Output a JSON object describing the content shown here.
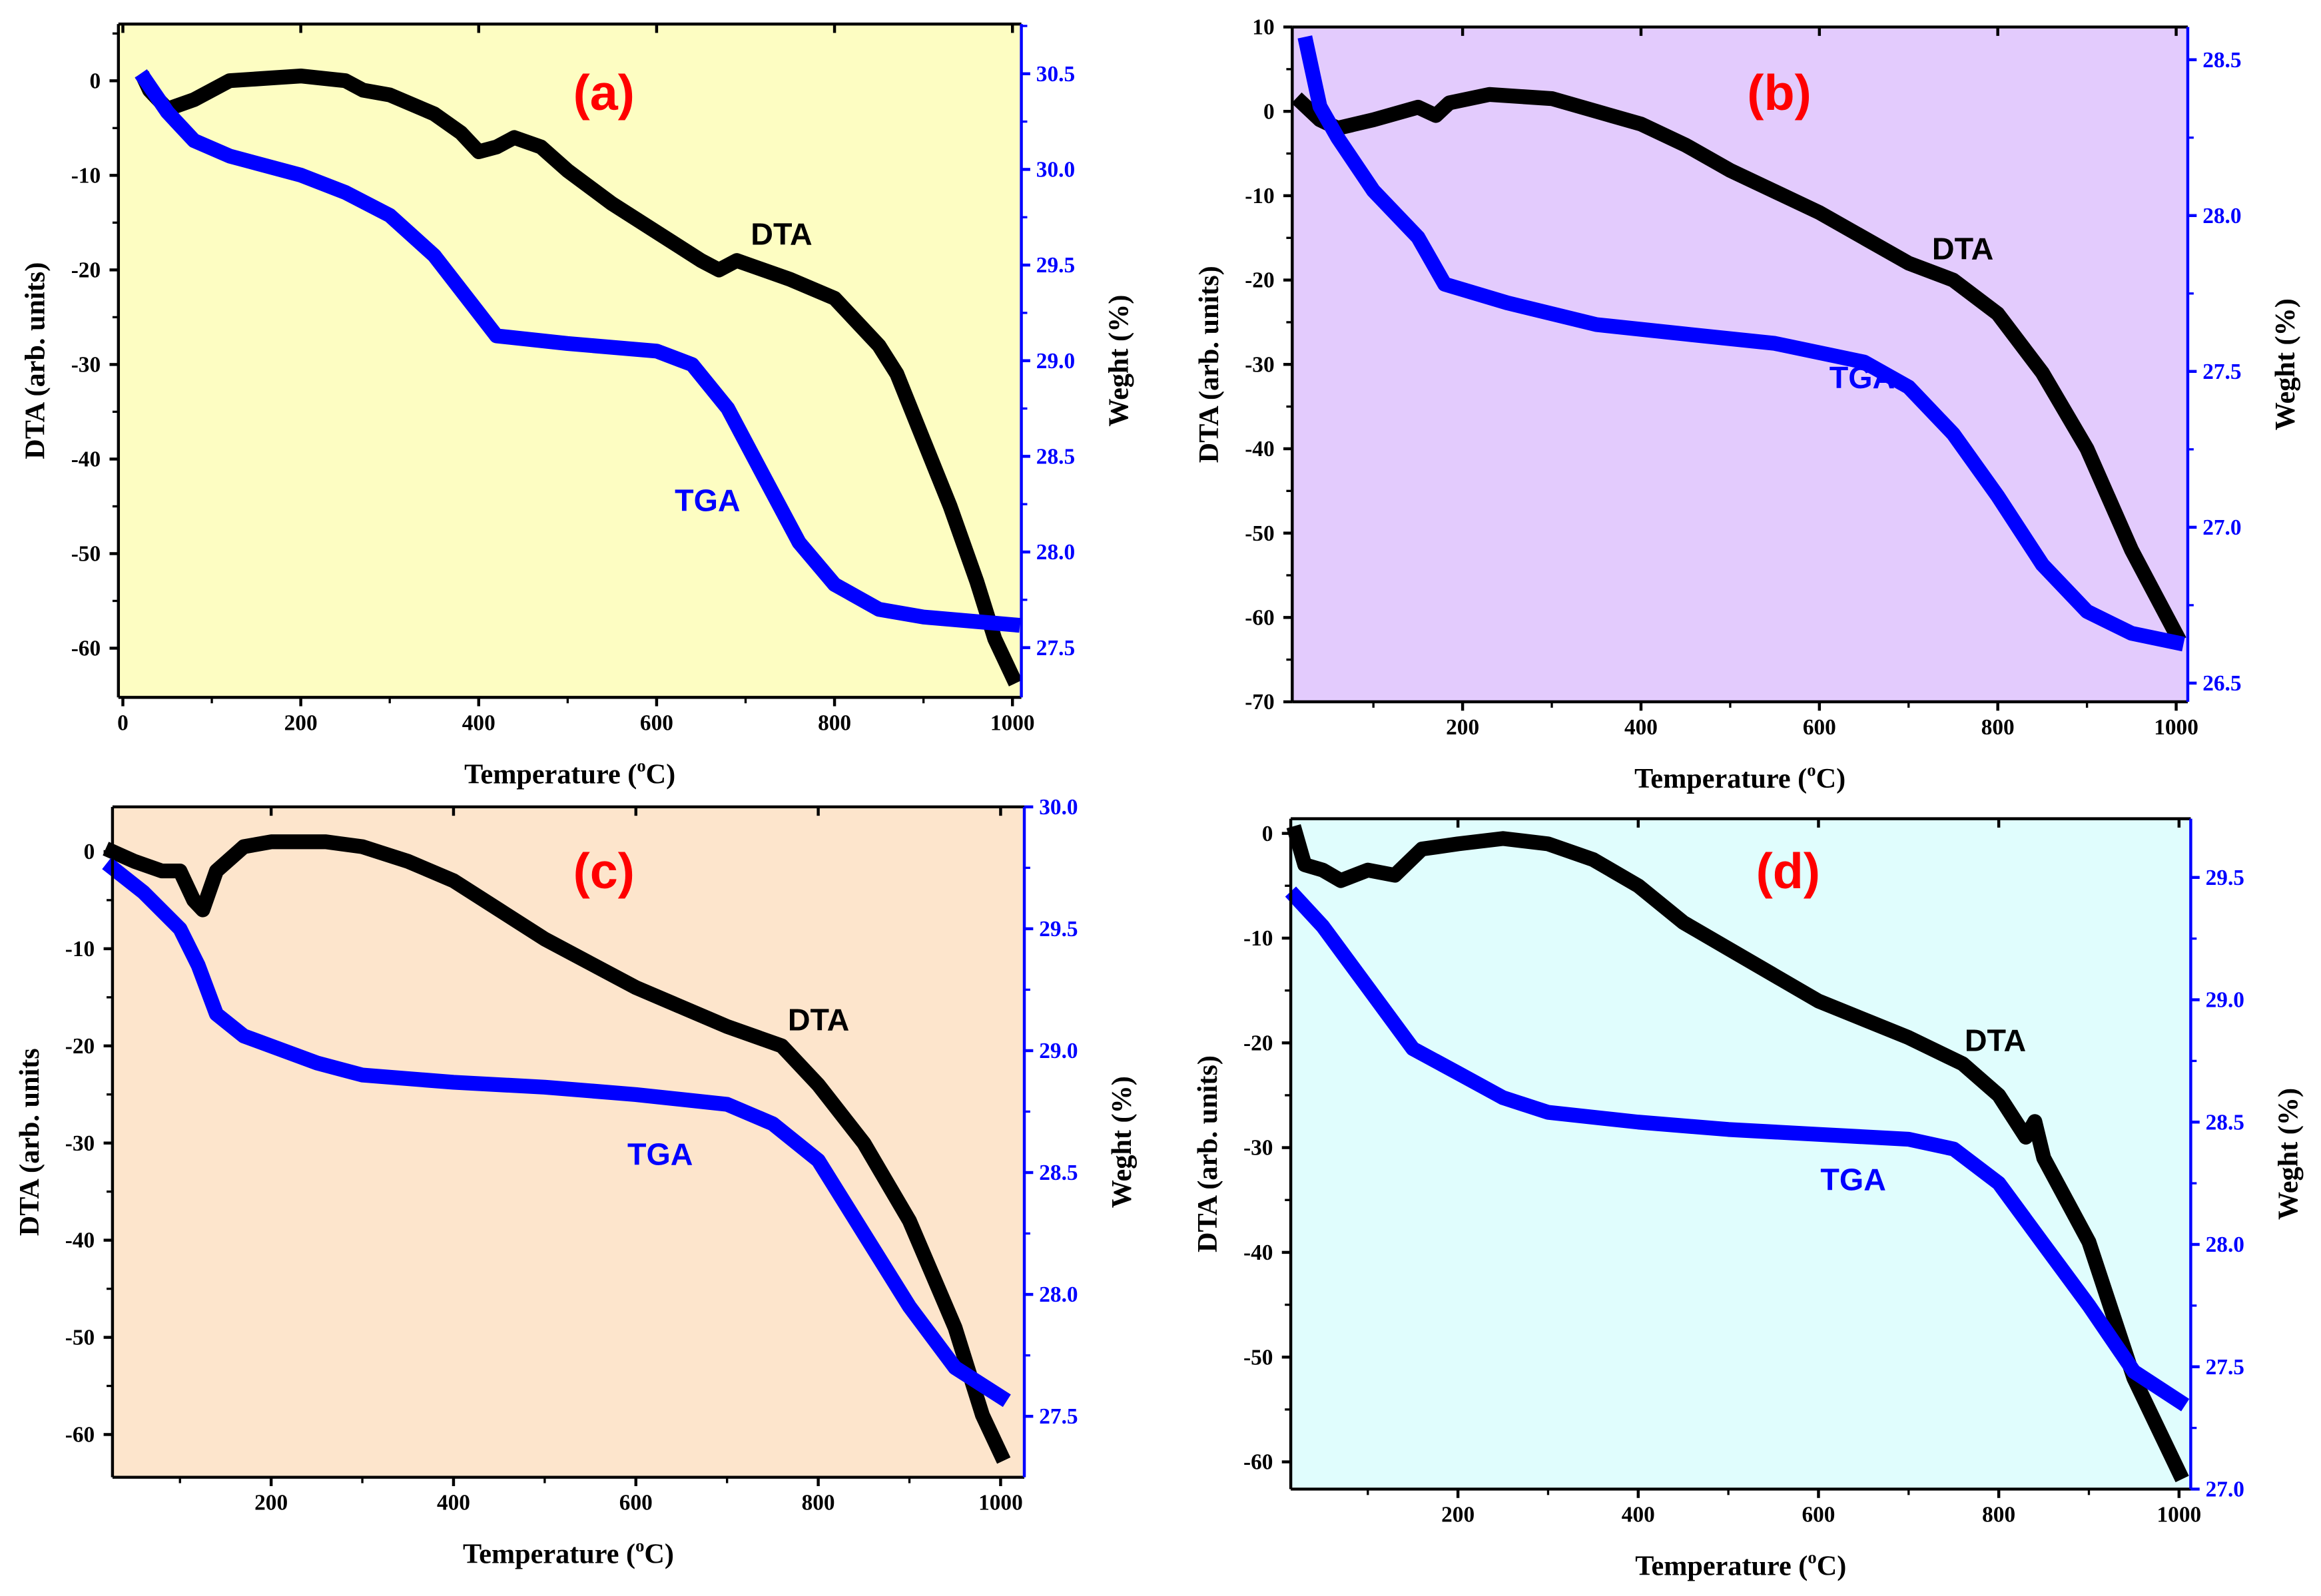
{
  "chart_data": [
    {
      "type": "line",
      "panel_label": "(a)",
      "xlabel": "Temperature (",
      "xlabel_sup": "o",
      "xlabel_end": "C)",
      "ylabel": "DTA (arb. units)",
      "y2label": "Weght (%)",
      "xlim": [
        -5,
        1010
      ],
      "ylim": [
        -65.2,
        6
      ],
      "y2lim": [
        27.24,
        30.76
      ],
      "xticks": [
        0,
        200,
        400,
        600,
        800,
        1000
      ],
      "yticks": [
        -60,
        -50,
        -40,
        -30,
        -20,
        -10,
        0
      ],
      "y2ticks": [
        "27.5",
        "28.0",
        "28.5",
        "29.0",
        "29.5",
        "30.0",
        "30.5"
      ],
      "background": "#fdfdc2",
      "series": [
        {
          "name": "DTA",
          "axis": "left",
          "color": "#000000",
          "x": [
            25,
            30,
            50,
            80,
            120,
            200,
            250,
            270,
            300,
            350,
            380,
            400,
            420,
            440,
            470,
            500,
            550,
            600,
            650,
            670,
            690,
            750,
            800,
            820,
            850,
            870,
            900,
            930,
            960,
            980,
            1000
          ],
          "y": [
            0,
            -1,
            -3,
            -2,
            0,
            0.5,
            0,
            -1,
            -1.5,
            -3.5,
            -5.5,
            -7.5,
            -7,
            -6,
            -7,
            -9.5,
            -13,
            -16,
            -19,
            -20,
            -19,
            -21,
            -23,
            -25,
            -28,
            -31,
            -38,
            -45,
            -53,
            -59,
            -63
          ]
        },
        {
          "name": "TGA",
          "axis": "right",
          "color": "#0000ff",
          "x": [
            25,
            50,
            80,
            120,
            200,
            250,
            300,
            350,
            400,
            420,
            500,
            600,
            640,
            680,
            720,
            760,
            800,
            850,
            900,
            1000
          ],
          "y": [
            30.47,
            30.3,
            30.15,
            30.07,
            29.97,
            29.88,
            29.76,
            29.55,
            29.25,
            29.13,
            29.09,
            29.05,
            28.98,
            28.75,
            28.4,
            28.05,
            27.83,
            27.7,
            27.66,
            27.62
          ]
        }
      ]
    },
    {
      "type": "line",
      "panel_label": "(b)",
      "xlabel": "Temperature (",
      "xlabel_sup": "o",
      "xlabel_end": "C)",
      "ylabel": "DTA (arb. units)",
      "y2label": "Weght (%)",
      "xlim": [
        9,
        1013
      ],
      "ylim": [
        -70,
        10
      ],
      "y2lim": [
        26.44,
        28.605
      ],
      "xticks": [
        200,
        400,
        600,
        800,
        1000
      ],
      "yticks": [
        -70,
        -60,
        -50,
        -40,
        -30,
        -20,
        -10,
        0,
        10
      ],
      "y2ticks": [
        "26.5",
        "27.0",
        "27.5",
        "28.0",
        "28.5"
      ],
      "background": "#e3cbfd",
      "series": [
        {
          "name": "DTA",
          "axis": "left",
          "color": "#000000",
          "x": [
            20,
            40,
            60,
            100,
            150,
            170,
            185,
            230,
            300,
            400,
            450,
            500,
            600,
            700,
            750,
            800,
            850,
            900,
            950,
            1000
          ],
          "y": [
            1,
            -1,
            -2,
            -1,
            0.5,
            -0.5,
            1,
            2,
            1.5,
            -1.5,
            -4,
            -7,
            -12,
            -18,
            -20,
            -24,
            -31,
            -40,
            -52,
            -62
          ]
        },
        {
          "name": "TGA",
          "axis": "right",
          "color": "#0000ff",
          "x": [
            25,
            40,
            60,
            100,
            150,
            180,
            250,
            350,
            450,
            550,
            650,
            700,
            750,
            800,
            850,
            900,
            950,
            1000
          ],
          "y": [
            28.55,
            28.35,
            28.25,
            28.08,
            27.93,
            27.78,
            27.72,
            27.65,
            27.62,
            27.59,
            27.53,
            27.45,
            27.3,
            27.1,
            26.88,
            26.73,
            26.66,
            26.63
          ]
        }
      ]
    },
    {
      "type": "line",
      "panel_label": "(c)",
      "xlabel": "Temperature (",
      "xlabel_sup": "o",
      "xlabel_end": "C)",
      "ylabel": "DTA (arb. units",
      "y2label": "Weght (%)",
      "xlim": [
        26,
        1026
      ],
      "ylim": [
        -64.4,
        4.6
      ],
      "y2lim": [
        27.25,
        30.0
      ],
      "xticks": [
        200,
        400,
        600,
        800,
        1000
      ],
      "yticks": [
        -60,
        -50,
        -40,
        -30,
        -20,
        -10,
        0
      ],
      "y2ticks": [
        "27.5",
        "28.0",
        "28.5",
        "29.0",
        "29.5",
        "30.0"
      ],
      "background": "#fde5cc",
      "series": [
        {
          "name": "DTA",
          "axis": "left",
          "color": "#000000",
          "x": [
            26,
            50,
            80,
            100,
            115,
            125,
            140,
            170,
            200,
            260,
            300,
            350,
            400,
            450,
            500,
            600,
            700,
            760,
            800,
            850,
            900,
            950,
            980,
            1000
          ],
          "y": [
            0,
            -1,
            -2,
            -2,
            -5,
            -6,
            -2,
            0.5,
            1,
            1,
            0.5,
            -1,
            -3,
            -6,
            -9,
            -14,
            -18,
            -20,
            -24,
            -30,
            -38,
            -49,
            -58,
            -62
          ]
        },
        {
          "name": "TGA",
          "axis": "right",
          "color": "#0000ff",
          "x": [
            26,
            60,
            100,
            120,
            140,
            170,
            250,
            300,
            400,
            500,
            600,
            700,
            750,
            800,
            850,
            900,
            950,
            1000
          ],
          "y": [
            29.75,
            29.65,
            29.5,
            29.35,
            29.15,
            29.06,
            28.95,
            28.9,
            28.87,
            28.85,
            28.82,
            28.78,
            28.7,
            28.55,
            28.25,
            27.95,
            27.7,
            27.58
          ]
        }
      ]
    },
    {
      "type": "line",
      "panel_label": "(d)",
      "xlabel": "Temperature (",
      "xlabel_sup": "o",
      "xlabel_end": "C)",
      "ylabel": "DTA (arb. units)",
      "y2label": "Weght (%)",
      "xlim": [
        14.5,
        1013
      ],
      "ylim": [
        -62.6,
        1.4
      ],
      "y2lim": [
        27.0,
        29.74
      ],
      "xticks": [
        200,
        400,
        600,
        800,
        1000
      ],
      "yticks": [
        -60,
        -50,
        -40,
        -30,
        -20,
        -10,
        0
      ],
      "y2ticks": [
        "27.0",
        "27.5",
        "28.0",
        "28.5",
        "29.0",
        "29.5"
      ],
      "background": "#e0fdfd",
      "series": [
        {
          "name": "DTA",
          "axis": "left",
          "color": "#000000",
          "x": [
            20,
            30,
            50,
            70,
            100,
            130,
            160,
            200,
            250,
            300,
            350,
            400,
            450,
            500,
            600,
            700,
            760,
            800,
            830,
            840,
            850,
            900,
            950,
            1000
          ],
          "y": [
            0,
            -3,
            -3.5,
            -4.5,
            -3.5,
            -4,
            -1.5,
            -1,
            -0.5,
            -1,
            -2.5,
            -5,
            -8.5,
            -11,
            -16,
            -19.5,
            -22,
            -25,
            -29,
            -27.5,
            -31,
            -39,
            -52,
            -61
          ]
        },
        {
          "name": "TGA",
          "axis": "right",
          "color": "#0000ff",
          "x": [
            20,
            50,
            100,
            150,
            200,
            250,
            300,
            400,
            500,
            600,
            700,
            750,
            800,
            850,
            900,
            950,
            1000
          ],
          "y": [
            29.42,
            29.3,
            29.05,
            28.8,
            28.7,
            28.6,
            28.54,
            28.5,
            28.47,
            28.45,
            28.43,
            28.39,
            28.25,
            28.0,
            27.75,
            27.48,
            27.36
          ]
        }
      ]
    }
  ]
}
